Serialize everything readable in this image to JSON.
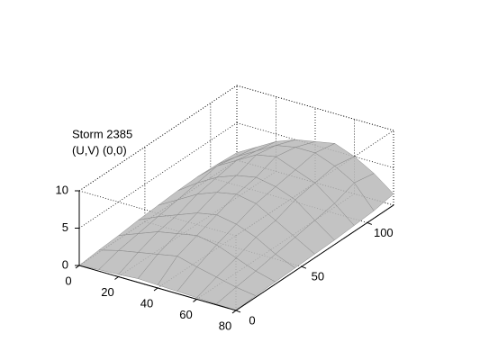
{
  "chart_data": {
    "type": "surface3d",
    "title": "Storm 2385",
    "subtitle": "(U,V) (0,0)",
    "xlim": [
      0,
      80
    ],
    "xticks": [
      0,
      20,
      40,
      60,
      80
    ],
    "ylim": [
      0,
      120
    ],
    "yticks": [
      0,
      50,
      100
    ],
    "zlim": [
      0,
      10
    ],
    "zticks": [
      0,
      5,
      10
    ],
    "grid": true,
    "color": "#b8b8b8",
    "edge_color": "#8a8a8a",
    "x": [
      0,
      10,
      20,
      30,
      40,
      50,
      60,
      70,
      80
    ],
    "y": [
      0,
      15,
      30,
      45,
      60,
      75,
      90,
      105,
      120
    ],
    "z": [
      [
        0,
        0.2,
        0.3,
        0.5,
        0.4,
        0.3,
        0.2,
        0.1,
        0
      ],
      [
        0.3,
        1,
        1.5,
        2,
        2.5,
        1.8,
        1.2,
        0.6,
        0.2
      ],
      [
        0.5,
        1.5,
        2.5,
        3,
        3.5,
        3,
        2,
        1,
        0.3
      ],
      [
        0.8,
        2,
        3,
        4,
        4.5,
        4,
        3,
        1.5,
        0.4
      ],
      [
        1,
        2.5,
        4,
        5,
        5.5,
        5,
        3.5,
        2,
        0.5
      ],
      [
        1.2,
        3,
        4.5,
        5.5,
        6,
        5.5,
        4.5,
        2.5,
        0.6
      ],
      [
        1.3,
        3.5,
        5,
        6.5,
        7,
        6,
        5,
        3,
        0.8
      ],
      [
        1.2,
        3,
        4.5,
        6,
        6.5,
        6.5,
        5.5,
        4,
        1
      ],
      [
        1,
        2.5,
        4,
        5,
        5.5,
        6,
        5,
        3.5,
        1.5
      ]
    ]
  }
}
